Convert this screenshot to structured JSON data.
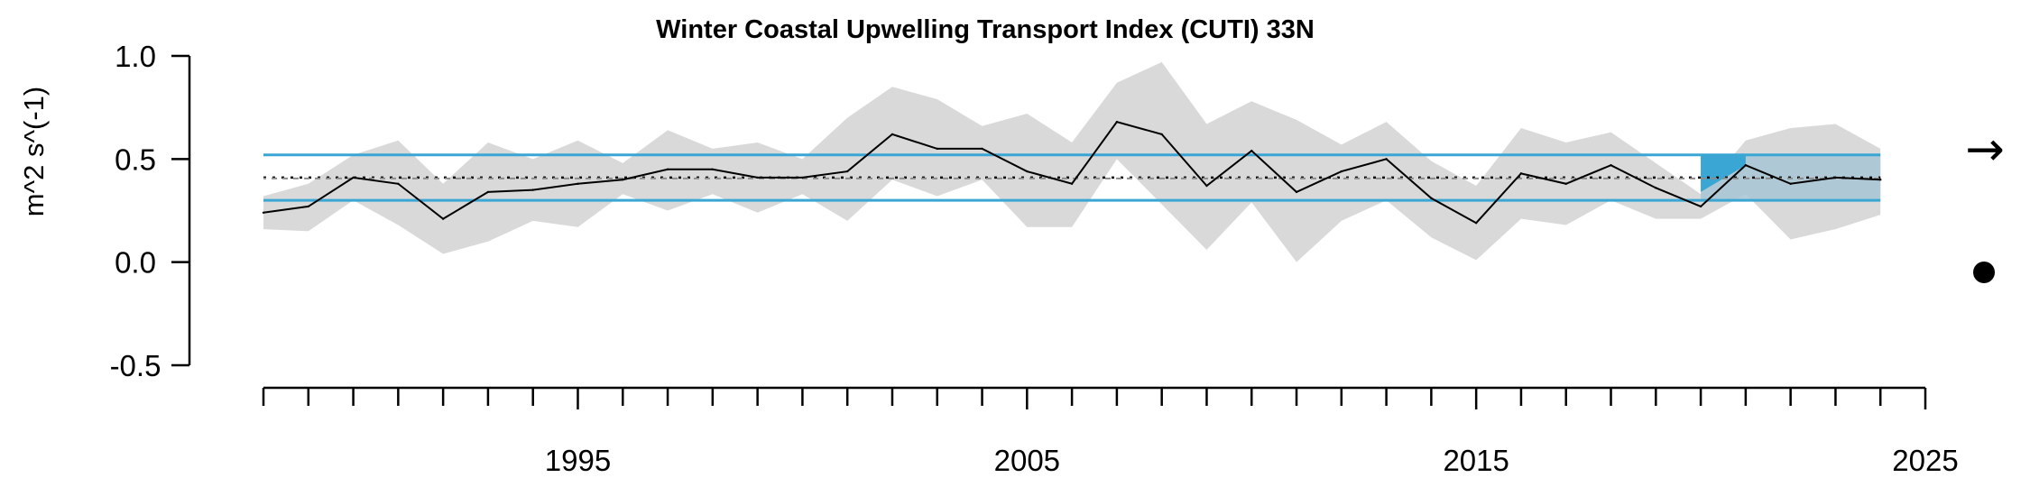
{
  "chart_data": {
    "type": "line",
    "title": "Winter Coastal Upwelling Transport Index (CUTI) 33N",
    "xlabel": "",
    "ylabel": "m^2 s^(-1)",
    "xlim": [
      1988,
      2025
    ],
    "ylim": [
      -0.5,
      1.0
    ],
    "x_tick_labels": [
      "1995",
      "2005",
      "2015",
      "2025"
    ],
    "x_tick_values": [
      1995,
      2005,
      2015,
      2025
    ],
    "y_tick_labels": [
      "-0.5",
      "0.0",
      "0.5",
      "1.0"
    ],
    "y_tick_values": [
      -0.5,
      0.0,
      0.5,
      1.0
    ],
    "grid": false,
    "series": [
      {
        "x": [
          1988,
          1989,
          1990,
          1991,
          1992,
          1993,
          1994,
          1995,
          1996,
          1997,
          1998,
          1999,
          2000,
          2001,
          2002,
          2003,
          2004,
          2005,
          2006,
          2007,
          2008,
          2009,
          2010,
          2011,
          2012,
          2013,
          2014,
          2015,
          2016,
          2017,
          2018,
          2019,
          2020,
          2021,
          2022,
          2023,
          2024
        ],
        "values": [
          0.24,
          0.27,
          0.41,
          0.38,
          0.21,
          0.34,
          0.35,
          0.38,
          0.4,
          0.45,
          0.45,
          0.41,
          0.41,
          0.44,
          0.62,
          0.55,
          0.55,
          0.44,
          0.38,
          0.68,
          0.62,
          0.37,
          0.54,
          0.34,
          0.44,
          0.5,
          0.31,
          0.19,
          0.43,
          0.38,
          0.47,
          0.36,
          0.27,
          0.47,
          0.38,
          0.41,
          0.4
        ],
        "lower": [
          0.16,
          0.15,
          0.3,
          0.18,
          0.04,
          0.1,
          0.2,
          0.17,
          0.33,
          0.25,
          0.33,
          0.24,
          0.33,
          0.2,
          0.4,
          0.32,
          0.4,
          0.17,
          0.17,
          0.5,
          0.28,
          0.06,
          0.29,
          0.0,
          0.2,
          0.3,
          0.12,
          0.01,
          0.21,
          0.18,
          0.3,
          0.21,
          0.21,
          0.33,
          0.11,
          0.16,
          0.23
        ],
        "upper": [
          0.32,
          0.38,
          0.52,
          0.59,
          0.38,
          0.58,
          0.5,
          0.59,
          0.48,
          0.64,
          0.55,
          0.58,
          0.5,
          0.7,
          0.85,
          0.79,
          0.66,
          0.72,
          0.58,
          0.87,
          0.97,
          0.67,
          0.78,
          0.69,
          0.57,
          0.68,
          0.49,
          0.37,
          0.65,
          0.58,
          0.63,
          0.48,
          0.33,
          0.59,
          0.65,
          0.67,
          0.55
        ],
        "color": "#000000",
        "band_color": "#d9d9d9"
      }
    ],
    "mean": 0.41,
    "sd_upper": 0.52,
    "sd_lower": 0.3,
    "sd_line_color": "#3aa6d3",
    "recent_window": [
      2020,
      2024
    ],
    "recent_fill_color": "#a7c4d3",
    "recent_highlight_color": "#3aa6d3",
    "trend_indicator": "→",
    "status_indicator": "●"
  }
}
